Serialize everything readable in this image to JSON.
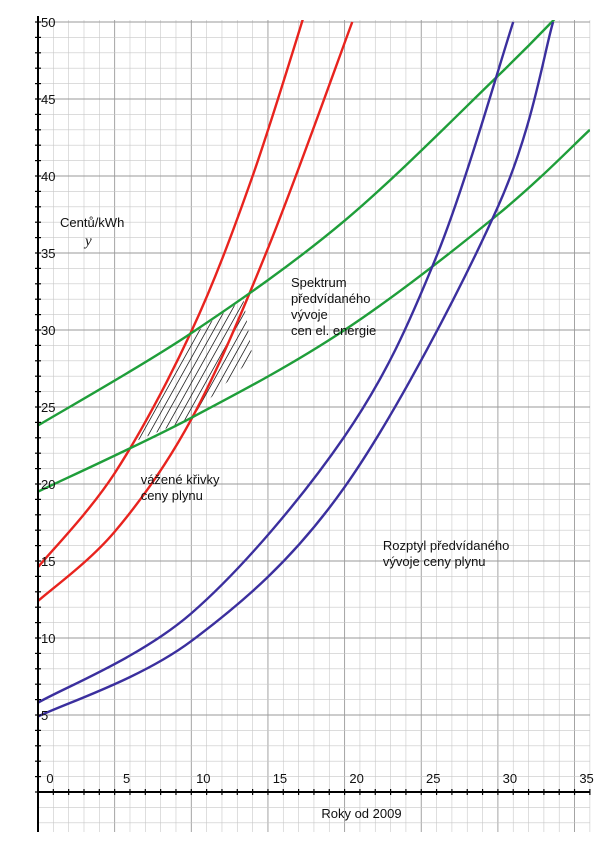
{
  "chart_data": {
    "type": "line",
    "title": "",
    "xlabel": "Roky od 2009",
    "ylabel": "Centů/kWh",
    "ylabel_var": "y",
    "xlim": [
      0,
      36
    ],
    "ylim": [
      0,
      50
    ],
    "xticks": [
      0,
      5,
      10,
      15,
      20,
      25,
      30,
      35
    ],
    "yticks": [
      5,
      10,
      15,
      20,
      25,
      30,
      35,
      40,
      45,
      50
    ],
    "grid": true,
    "colors": {
      "red": "#e8231e",
      "green": "#1f9e3a",
      "blue": "#3b2f9e"
    },
    "series": [
      {
        "color": "red",
        "x": [
          0,
          5,
          10,
          14,
          18
        ],
        "y": [
          14.6,
          20.7,
          29.9,
          40.0,
          52.5
        ]
      },
      {
        "color": "red",
        "x": [
          0,
          5,
          10,
          15,
          20.5
        ],
        "y": [
          12.4,
          16.9,
          24.2,
          35.3,
          50.0
        ]
      },
      {
        "color": "green",
        "x": [
          0,
          10,
          20,
          30,
          34
        ],
        "y": [
          23.8,
          29.8,
          37.1,
          46.5,
          50.5
        ]
      },
      {
        "color": "green",
        "x": [
          0,
          10,
          20,
          30,
          36
        ],
        "y": [
          19.5,
          24.3,
          30.0,
          37.5,
          43.0
        ]
      },
      {
        "color": "blue",
        "x": [
          0,
          10,
          20,
          26,
          31
        ],
        "y": [
          5.8,
          11.6,
          23.1,
          34.8,
          50.0
        ]
      },
      {
        "color": "blue",
        "x": [
          0,
          10,
          20,
          30,
          33.6
        ],
        "y": [
          4.9,
          9.8,
          19.8,
          38.0,
          50.0
        ]
      }
    ],
    "hatched_region": {
      "x": [
        6.4,
        10.2,
        13.4,
        14.0,
        9.8,
        6.9
      ],
      "y": [
        22.8,
        29.8,
        32.0,
        28.2,
        24.2,
        23.0
      ]
    },
    "annotations": [
      {
        "lines": [
          "Spektrum",
          "předvídaného",
          "vývoje",
          "cen el. energie"
        ],
        "at": [
          16.5,
          32.8
        ]
      },
      {
        "lines": [
          "vážené křivky",
          "ceny plynu"
        ],
        "at": [
          6.7,
          20.0
        ]
      },
      {
        "lines": [
          "Rozptyl předvídaného",
          "vývoje ceny plynu"
        ],
        "at": [
          22.5,
          15.7
        ]
      }
    ]
  }
}
